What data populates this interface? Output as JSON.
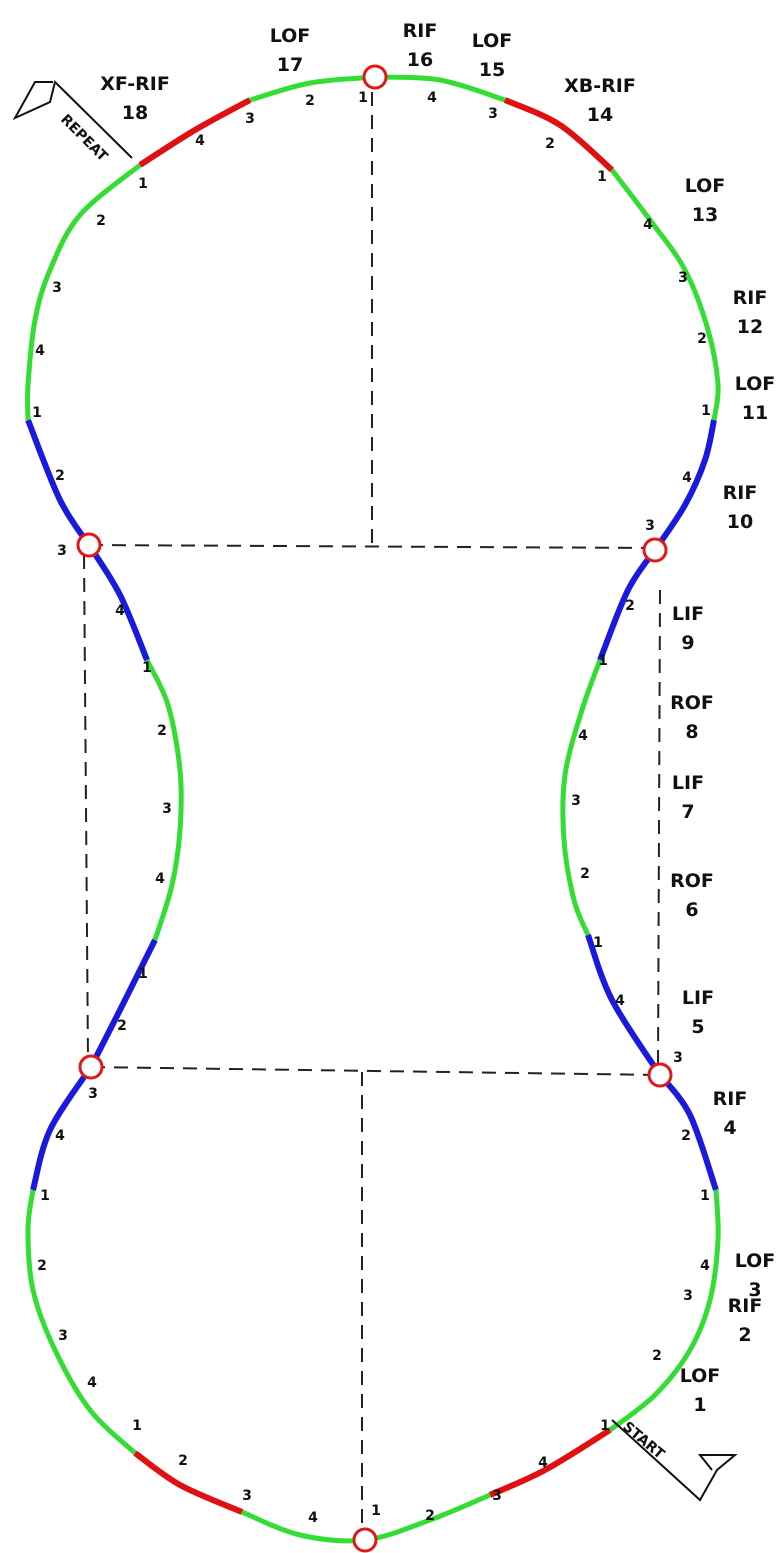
{
  "steps": [
    {
      "name": "LOF",
      "number": 1
    },
    {
      "name": "RIF",
      "number": 2
    },
    {
      "name": "LOF",
      "number": 3
    },
    {
      "name": "RIF",
      "number": 4
    },
    {
      "name": "LIF",
      "number": 5
    },
    {
      "name": "ROF",
      "number": 6
    },
    {
      "name": "LIF",
      "number": 7
    },
    {
      "name": "ROF",
      "number": 8
    },
    {
      "name": "LIF",
      "number": 9
    },
    {
      "name": "RIF",
      "number": 10
    },
    {
      "name": "LOF",
      "number": 11
    },
    {
      "name": "RIF",
      "number": 12
    },
    {
      "name": "LOF",
      "number": 13
    },
    {
      "name": "XB-RIF",
      "number": 14
    },
    {
      "name": "LOF",
      "number": 15
    },
    {
      "name": "RIF",
      "number": 16
    },
    {
      "name": "LOF",
      "number": 17
    },
    {
      "name": "XF-RIF",
      "number": 18
    }
  ],
  "markers": {
    "start": "START",
    "repeat": "REPEAT"
  },
  "beats": [
    1,
    4,
    3,
    2,
    1,
    4,
    3,
    2,
    1,
    4,
    3,
    2,
    1,
    4,
    3,
    2,
    1,
    4,
    3,
    2,
    1,
    4,
    3,
    2,
    1,
    4,
    3,
    2,
    1,
    4,
    3,
    2,
    1,
    4,
    3,
    2,
    1,
    4,
    3,
    2,
    1,
    4,
    3,
    2,
    1,
    4,
    3,
    2,
    1,
    4,
    3,
    2,
    1,
    4,
    3,
    2
  ]
}
